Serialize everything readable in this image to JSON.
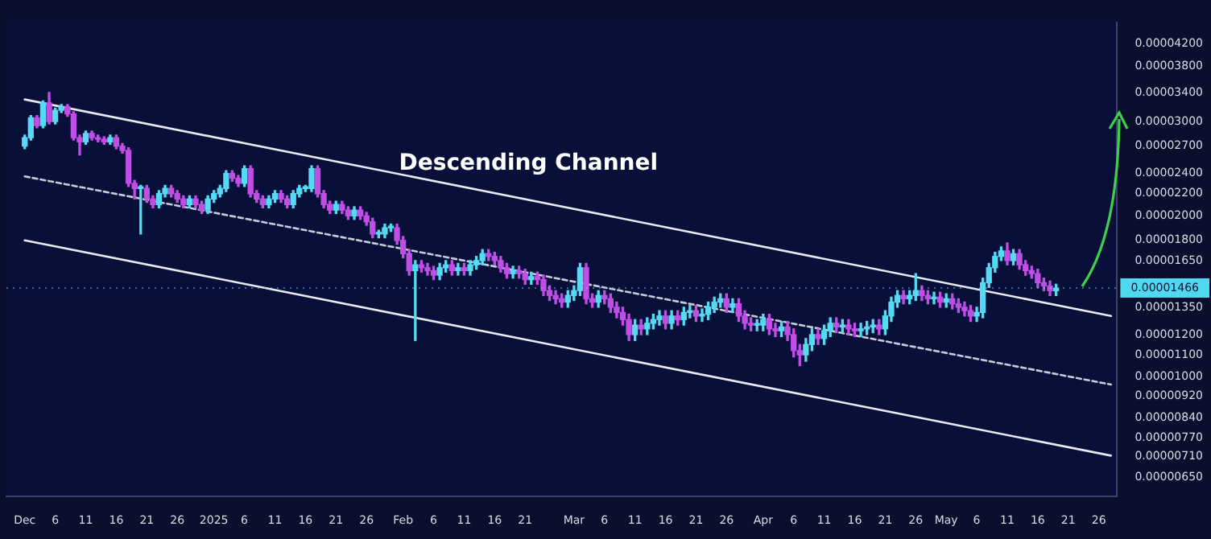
{
  "chart_data": {
    "type": "candlestick",
    "log": true,
    "annotations": [
      "Descending Channel"
    ],
    "x": [
      "2024-12-01",
      "2024-12-02",
      "2024-12-03",
      "2024-12-04",
      "2024-12-05",
      "2024-12-06",
      "2024-12-07",
      "2024-12-08",
      "2024-12-09",
      "2024-12-10",
      "2024-12-11",
      "2024-12-12",
      "2024-12-13",
      "2024-12-14",
      "2024-12-15",
      "2024-12-16",
      "2024-12-17",
      "2024-12-18",
      "2024-12-19",
      "2024-12-20",
      "2024-12-21",
      "2024-12-22",
      "2024-12-23",
      "2024-12-24",
      "2024-12-25",
      "2024-12-26",
      "2024-12-27",
      "2024-12-28",
      "2024-12-29",
      "2024-12-30",
      "2024-12-31",
      "2025-01-01",
      "2025-01-02",
      "2025-01-03",
      "2025-01-04",
      "2025-01-05",
      "2025-01-06",
      "2025-01-07",
      "2025-01-08",
      "2025-01-09",
      "2025-01-10",
      "2025-01-11",
      "2025-01-12",
      "2025-01-13",
      "2025-01-14",
      "2025-01-15",
      "2025-01-16",
      "2025-01-17",
      "2025-01-18",
      "2025-01-19",
      "2025-01-20",
      "2025-01-21",
      "2025-01-22",
      "2025-01-23",
      "2025-01-24",
      "2025-01-25",
      "2025-01-26",
      "2025-01-27",
      "2025-01-28",
      "2025-01-29",
      "2025-01-30",
      "2025-01-31",
      "2025-02-01",
      "2025-02-02",
      "2025-02-03",
      "2025-02-04",
      "2025-02-05",
      "2025-02-06",
      "2025-02-07",
      "2025-02-08",
      "2025-02-09",
      "2025-02-10",
      "2025-02-11",
      "2025-02-12",
      "2025-02-13",
      "2025-02-14",
      "2025-02-15",
      "2025-02-16",
      "2025-02-17",
      "2025-02-18",
      "2025-02-19",
      "2025-02-20",
      "2025-02-21",
      "2025-02-22",
      "2025-02-23",
      "2025-02-24",
      "2025-02-25",
      "2025-02-26",
      "2025-02-27",
      "2025-02-28",
      "2025-03-01",
      "2025-03-02",
      "2025-03-03",
      "2025-03-04",
      "2025-03-05",
      "2025-03-06",
      "2025-03-07",
      "2025-03-08",
      "2025-03-09",
      "2025-03-10",
      "2025-03-11",
      "2025-03-12",
      "2025-03-13",
      "2025-03-14",
      "2025-03-15",
      "2025-03-16",
      "2025-03-17",
      "2025-03-18",
      "2025-03-19",
      "2025-03-20",
      "2025-03-21",
      "2025-03-22",
      "2025-03-23",
      "2025-03-24",
      "2025-03-25",
      "2025-03-26",
      "2025-03-27",
      "2025-03-28",
      "2025-03-29",
      "2025-03-30",
      "2025-03-31",
      "2025-04-01",
      "2025-04-02",
      "2025-04-03",
      "2025-04-04",
      "2025-04-05",
      "2025-04-06",
      "2025-04-07",
      "2025-04-08",
      "2025-04-09",
      "2025-04-10",
      "2025-04-11",
      "2025-04-12",
      "2025-04-13",
      "2025-04-14",
      "2025-04-15",
      "2025-04-16",
      "2025-04-17",
      "2025-04-18",
      "2025-04-19",
      "2025-04-20",
      "2025-04-21",
      "2025-04-22",
      "2025-04-23",
      "2025-04-24",
      "2025-04-25",
      "2025-04-26",
      "2025-04-27",
      "2025-04-28",
      "2025-04-29",
      "2025-04-30",
      "2025-05-01",
      "2025-05-02",
      "2025-05-03",
      "2025-05-04",
      "2025-05-05",
      "2025-05-06",
      "2025-05-07",
      "2025-05-08",
      "2025-05-09",
      "2025-05-10",
      "2025-05-11",
      "2025-05-12",
      "2025-05-13",
      "2025-05-14",
      "2025-05-15",
      "2025-05-16",
      "2025-05-17",
      "2025-05-18",
      "2025-05-19"
    ],
    "ohlc": [
      [
        2.7e-05,
        2.83e-05,
        2.67e-05,
        2.8e-05
      ],
      [
        2.8e-05,
        3.08e-05,
        2.77e-05,
        3.05e-05
      ],
      [
        3.05e-05,
        3.08e-05,
        2.92e-05,
        2.95e-05
      ],
      [
        2.95e-05,
        3.28e-05,
        2.92e-05,
        3.25e-05
      ],
      [
        3.25e-05,
        3.4e-05,
        2.97e-05,
        3e-05
      ],
      [
        3e-05,
        3.18e-05,
        2.97e-05,
        3.15e-05
      ],
      [
        3.15e-05,
        3.23e-05,
        3.12e-05,
        3.2e-05
      ],
      [
        3.2e-05,
        3.23e-05,
        3.07e-05,
        3.1e-05
      ],
      [
        3.1e-05,
        3.13e-05,
        2.77e-05,
        2.8e-05
      ],
      [
        2.8e-05,
        2.83e-05,
        2.6e-05,
        2.75e-05
      ],
      [
        2.75e-05,
        2.88e-05,
        2.72e-05,
        2.85e-05
      ],
      [
        2.85e-05,
        2.88e-05,
        2.77e-05,
        2.8e-05
      ],
      [
        2.8e-05,
        2.83e-05,
        2.75e-05,
        2.78e-05
      ],
      [
        2.78e-05,
        2.81e-05,
        2.72e-05,
        2.75e-05
      ],
      [
        2.75e-05,
        2.83e-05,
        2.72e-05,
        2.8e-05
      ],
      [
        2.8e-05,
        2.83e-05,
        2.67e-05,
        2.7e-05
      ],
      [
        2.7e-05,
        2.73e-05,
        2.62e-05,
        2.65e-05
      ],
      [
        2.65e-05,
        2.68e-05,
        2.27e-05,
        2.3e-05
      ],
      [
        2.3e-05,
        2.33e-05,
        2.15e-05,
        2.25e-05
      ],
      [
        2.25e-05,
        2.28e-05,
        1.85e-05,
        2.25e-05
      ],
      [
        2.25e-05,
        2.28e-05,
        2.12e-05,
        2.15e-05
      ],
      [
        2.15e-05,
        2.18e-05,
        2.07e-05,
        2.1e-05
      ],
      [
        2.1e-05,
        2.23e-05,
        2.07e-05,
        2.2e-05
      ],
      [
        2.2e-05,
        2.28e-05,
        2.17e-05,
        2.25e-05
      ],
      [
        2.25e-05,
        2.28e-05,
        2.17e-05,
        2.2e-05
      ],
      [
        2.2e-05,
        2.23e-05,
        2.12e-05,
        2.15e-05
      ],
      [
        2.15e-05,
        2.18e-05,
        2.07e-05,
        2.1e-05
      ],
      [
        2.1e-05,
        2.18e-05,
        2.07e-05,
        2.15e-05
      ],
      [
        2.15e-05,
        2.18e-05,
        2.07e-05,
        2.1e-05
      ],
      [
        2.1e-05,
        2.13e-05,
        2.02e-05,
        2.05e-05
      ],
      [
        2.05e-05,
        2.18e-05,
        2.02e-05,
        2.15e-05
      ],
      [
        2.15e-05,
        2.23e-05,
        2.12e-05,
        2.2e-05
      ],
      [
        2.2e-05,
        2.28e-05,
        2.17e-05,
        2.25e-05
      ],
      [
        2.25e-05,
        2.43e-05,
        2.22e-05,
        2.4e-05
      ],
      [
        2.4e-05,
        2.43e-05,
        2.32e-05,
        2.35e-05
      ],
      [
        2.35e-05,
        2.38e-05,
        2.27e-05,
        2.3e-05
      ],
      [
        2.3e-05,
        2.48e-05,
        2.27e-05,
        2.45e-05
      ],
      [
        2.45e-05,
        2.48e-05,
        2.17e-05,
        2.2e-05
      ],
      [
        2.2e-05,
        2.23e-05,
        2.12e-05,
        2.15e-05
      ],
      [
        2.15e-05,
        2.18e-05,
        2.07e-05,
        2.1e-05
      ],
      [
        2.1e-05,
        2.18e-05,
        2.07e-05,
        2.15e-05
      ],
      [
        2.15e-05,
        2.23e-05,
        2.12e-05,
        2.2e-05
      ],
      [
        2.2e-05,
        2.23e-05,
        2.12e-05,
        2.15e-05
      ],
      [
        2.15e-05,
        2.18e-05,
        2.07e-05,
        2.1e-05
      ],
      [
        2.1e-05,
        2.23e-05,
        2.07e-05,
        2.2e-05
      ],
      [
        2.2e-05,
        2.28e-05,
        2.17e-05,
        2.25e-05
      ],
      [
        2.25e-05,
        2.28e-05,
        2.22e-05,
        2.25e-05
      ],
      [
        2.25e-05,
        2.48e-05,
        2.22e-05,
        2.45e-05
      ],
      [
        2.45e-05,
        2.48e-05,
        2.17e-05,
        2.2e-05
      ],
      [
        2.2e-05,
        2.23e-05,
        2.07e-05,
        2.1e-05
      ],
      [
        2.1e-05,
        2.13e-05,
        2.02e-05,
        2.05e-05
      ],
      [
        2.05e-05,
        2.13e-05,
        2.02e-05,
        2.1e-05
      ],
      [
        2.1e-05,
        2.13e-05,
        2.02e-05,
        2.05e-05
      ],
      [
        2.05e-05,
        2.08e-05,
        1.97e-05,
        2e-05
      ],
      [
        2e-05,
        2.08e-05,
        1.97e-05,
        2.05e-05
      ],
      [
        2.05e-05,
        2.08e-05,
        1.97e-05,
        2e-05
      ],
      [
        2e-05,
        2.03e-05,
        1.92e-05,
        1.95e-05
      ],
      [
        1.95e-05,
        1.98e-05,
        1.82e-05,
        1.85e-05
      ],
      [
        1.85e-05,
        1.88e-05,
        1.82e-05,
        1.85e-05
      ],
      [
        1.85e-05,
        1.93e-05,
        1.82e-05,
        1.9e-05
      ],
      [
        1.9e-05,
        1.93e-05,
        1.87e-05,
        1.9e-05
      ],
      [
        1.9e-05,
        1.93e-05,
        1.77e-05,
        1.8e-05
      ],
      [
        1.8e-05,
        1.83e-05,
        1.67e-05,
        1.7e-05
      ],
      [
        1.7e-05,
        1.73e-05,
        1.55e-05,
        1.58e-05
      ],
      [
        1.58e-05,
        1.65e-05,
        1.17e-05,
        1.62e-05
      ],
      [
        1.62e-05,
        1.65e-05,
        1.57e-05,
        1.6e-05
      ],
      [
        1.6e-05,
        1.63e-05,
        1.55e-05,
        1.58e-05
      ],
      [
        1.58e-05,
        1.61e-05,
        1.52e-05,
        1.55e-05
      ],
      [
        1.55e-05,
        1.63e-05,
        1.52e-05,
        1.6e-05
      ],
      [
        1.6e-05,
        1.65e-05,
        1.57e-05,
        1.62e-05
      ],
      [
        1.62e-05,
        1.65e-05,
        1.55e-05,
        1.58e-05
      ],
      [
        1.58e-05,
        1.63e-05,
        1.55e-05,
        1.6e-05
      ],
      [
        1.6e-05,
        1.63e-05,
        1.55e-05,
        1.58e-05
      ],
      [
        1.58e-05,
        1.65e-05,
        1.55e-05,
        1.62e-05
      ],
      [
        1.62e-05,
        1.68e-05,
        1.59e-05,
        1.65e-05
      ],
      [
        1.65e-05,
        1.73e-05,
        1.62e-05,
        1.7e-05
      ],
      [
        1.7e-05,
        1.73e-05,
        1.65e-05,
        1.68e-05
      ],
      [
        1.68e-05,
        1.71e-05,
        1.62e-05,
        1.65e-05
      ],
      [
        1.65e-05,
        1.68e-05,
        1.57e-05,
        1.6e-05
      ],
      [
        1.6e-05,
        1.63e-05,
        1.53e-05,
        1.56e-05
      ],
      [
        1.56e-05,
        1.61e-05,
        1.53e-05,
        1.58e-05
      ],
      [
        1.58e-05,
        1.61e-05,
        1.53e-05,
        1.56e-05
      ],
      [
        1.56e-05,
        1.59e-05,
        1.49e-05,
        1.52e-05
      ],
      [
        1.52e-05,
        1.57e-05,
        1.49e-05,
        1.54e-05
      ],
      [
        1.54e-05,
        1.57e-05,
        1.49e-05,
        1.52e-05
      ],
      [
        1.52e-05,
        1.55e-05,
        1.42e-05,
        1.45e-05
      ],
      [
        1.45e-05,
        1.48e-05,
        1.39e-05,
        1.42e-05
      ],
      [
        1.42e-05,
        1.45e-05,
        1.37e-05,
        1.4e-05
      ],
      [
        1.4e-05,
        1.43e-05,
        1.35e-05,
        1.38e-05
      ],
      [
        1.38e-05,
        1.45e-05,
        1.35e-05,
        1.42e-05
      ],
      [
        1.42e-05,
        1.48e-05,
        1.39e-05,
        1.45e-05
      ],
      [
        1.45e-05,
        1.63e-05,
        1.42e-05,
        1.6e-05
      ],
      [
        1.6e-05,
        1.63e-05,
        1.37e-05,
        1.4e-05
      ],
      [
        1.4e-05,
        1.43e-05,
        1.35e-05,
        1.38e-05
      ],
      [
        1.38e-05,
        1.45e-05,
        1.35e-05,
        1.42e-05
      ],
      [
        1.42e-05,
        1.45e-05,
        1.37e-05,
        1.4e-05
      ],
      [
        1.4e-05,
        1.43e-05,
        1.32e-05,
        1.35e-05
      ],
      [
        1.35e-05,
        1.38e-05,
        1.29e-05,
        1.32e-05
      ],
      [
        1.32e-05,
        1.35e-05,
        1.25e-05,
        1.28e-05
      ],
      [
        1.28e-05,
        1.31e-05,
        1.17e-05,
        1.2e-05
      ],
      [
        1.2e-05,
        1.28e-05,
        1.17e-05,
        1.25e-05
      ],
      [
        1.25e-05,
        1.28e-05,
        1.2e-05,
        1.23e-05
      ],
      [
        1.23e-05,
        1.29e-05,
        1.2e-05,
        1.26e-05
      ],
      [
        1.26e-05,
        1.31e-05,
        1.23e-05,
        1.28e-05
      ],
      [
        1.28e-05,
        1.33e-05,
        1.25e-05,
        1.3e-05
      ],
      [
        1.3e-05,
        1.33e-05,
        1.23e-05,
        1.26e-05
      ],
      [
        1.26e-05,
        1.33e-05,
        1.23e-05,
        1.3e-05
      ],
      [
        1.3e-05,
        1.33e-05,
        1.25e-05,
        1.28e-05
      ],
      [
        1.28e-05,
        1.35e-05,
        1.25e-05,
        1.32e-05
      ],
      [
        1.32e-05,
        1.36e-05,
        1.29e-05,
        1.33e-05
      ],
      [
        1.33e-05,
        1.36e-05,
        1.27e-05,
        1.3e-05
      ],
      [
        1.3e-05,
        1.34e-05,
        1.27e-05,
        1.31e-05
      ],
      [
        1.31e-05,
        1.38e-05,
        1.28e-05,
        1.35e-05
      ],
      [
        1.35e-05,
        1.41e-05,
        1.32e-05,
        1.38e-05
      ],
      [
        1.38e-05,
        1.43e-05,
        1.35e-05,
        1.4e-05
      ],
      [
        1.4e-05,
        1.43e-05,
        1.32e-05,
        1.35e-05
      ],
      [
        1.35e-05,
        1.4e-05,
        1.32e-05,
        1.37e-05
      ],
      [
        1.37e-05,
        1.4e-05,
        1.27e-05,
        1.3e-05
      ],
      [
        1.3e-05,
        1.33e-05,
        1.23e-05,
        1.26e-05
      ],
      [
        1.26e-05,
        1.29e-05,
        1.22e-05,
        1.25e-05
      ],
      [
        1.25e-05,
        1.28e-05,
        1.22e-05,
        1.25e-05
      ],
      [
        1.25e-05,
        1.31e-05,
        1.22e-05,
        1.28e-05
      ],
      [
        1.28e-05,
        1.31e-05,
        1.2e-05,
        1.23e-05
      ],
      [
        1.23e-05,
        1.26e-05,
        1.19e-05,
        1.22e-05
      ],
      [
        1.22e-05,
        1.27e-05,
        1.19e-05,
        1.24e-05
      ],
      [
        1.24e-05,
        1.27e-05,
        1.17e-05,
        1.2e-05
      ],
      [
        1.2e-05,
        1.23e-05,
        1.09e-05,
        1.12e-05
      ],
      [
        1.12e-05,
        1.15e-05,
        1.05e-05,
        1.1e-05
      ],
      [
        1.1e-05,
        1.18e-05,
        1.07e-05,
        1.15e-05
      ],
      [
        1.15e-05,
        1.23e-05,
        1.12e-05,
        1.2e-05
      ],
      [
        1.2e-05,
        1.23e-05,
        1.15e-05,
        1.18e-05
      ],
      [
        1.18e-05,
        1.25e-05,
        1.15e-05,
        1.22e-05
      ],
      [
        1.22e-05,
        1.29e-05,
        1.19e-05,
        1.26e-05
      ],
      [
        1.26e-05,
        1.29e-05,
        1.21e-05,
        1.24e-05
      ],
      [
        1.24e-05,
        1.28e-05,
        1.21e-05,
        1.25e-05
      ],
      [
        1.25e-05,
        1.28e-05,
        1.2e-05,
        1.23e-05
      ],
      [
        1.23e-05,
        1.26e-05,
        1.19e-05,
        1.22e-05
      ],
      [
        1.22e-05,
        1.26e-05,
        1.19e-05,
        1.23e-05
      ],
      [
        1.23e-05,
        1.27e-05,
        1.2e-05,
        1.24e-05
      ],
      [
        1.24e-05,
        1.28e-05,
        1.21e-05,
        1.25e-05
      ],
      [
        1.25e-05,
        1.28e-05,
        1.2e-05,
        1.23e-05
      ],
      [
        1.23e-05,
        1.33e-05,
        1.2e-05,
        1.3e-05
      ],
      [
        1.3e-05,
        1.41e-05,
        1.27e-05,
        1.38e-05
      ],
      [
        1.38e-05,
        1.45e-05,
        1.35e-05,
        1.42e-05
      ],
      [
        1.42e-05,
        1.45e-05,
        1.37e-05,
        1.4e-05
      ],
      [
        1.4e-05,
        1.45e-05,
        1.37e-05,
        1.42e-05
      ],
      [
        1.42e-05,
        1.56e-05,
        1.39e-05,
        1.45e-05
      ],
      [
        1.45e-05,
        1.48e-05,
        1.39e-05,
        1.42e-05
      ],
      [
        1.42e-05,
        1.45e-05,
        1.37e-05,
        1.4e-05
      ],
      [
        1.4e-05,
        1.44e-05,
        1.37e-05,
        1.41e-05
      ],
      [
        1.41e-05,
        1.44e-05,
        1.35e-05,
        1.38e-05
      ],
      [
        1.38e-05,
        1.43e-05,
        1.35e-05,
        1.4e-05
      ],
      [
        1.4e-05,
        1.43e-05,
        1.34e-05,
        1.37e-05
      ],
      [
        1.37e-05,
        1.4e-05,
        1.32e-05,
        1.35e-05
      ],
      [
        1.35e-05,
        1.38e-05,
        1.3e-05,
        1.33e-05
      ],
      [
        1.33e-05,
        1.36e-05,
        1.27e-05,
        1.3e-05
      ],
      [
        1.3e-05,
        1.35e-05,
        1.27e-05,
        1.32e-05
      ],
      [
        1.32e-05,
        1.53e-05,
        1.29e-05,
        1.5e-05
      ],
      [
        1.5e-05,
        1.63e-05,
        1.47e-05,
        1.6e-05
      ],
      [
        1.6e-05,
        1.71e-05,
        1.57e-05,
        1.68e-05
      ],
      [
        1.68e-05,
        1.75e-05,
        1.65e-05,
        1.72e-05
      ],
      [
        1.72e-05,
        1.78e-05,
        1.62e-05,
        1.65e-05
      ],
      [
        1.65e-05,
        1.73e-05,
        1.62e-05,
        1.7e-05
      ],
      [
        1.7e-05,
        1.73e-05,
        1.59e-05,
        1.62e-05
      ],
      [
        1.62e-05,
        1.65e-05,
        1.55e-05,
        1.58e-05
      ],
      [
        1.58e-05,
        1.61e-05,
        1.53e-05,
        1.56e-05
      ],
      [
        1.56e-05,
        1.59e-05,
        1.47e-05,
        1.5e-05
      ],
      [
        1.5e-05,
        1.53e-05,
        1.45e-05,
        1.48e-05
      ],
      [
        1.48e-05,
        1.51e-05,
        1.42e-05,
        1.45e-05
      ],
      [
        1.45e-05,
        1.49e-05,
        1.42e-05,
        1.466e-05
      ]
    ],
    "series": [
      {
        "type": "line",
        "x": [
          "2024-12-01",
          "2025-05-28"
        ],
        "values": [
          3.3e-05,
          1.3e-05
        ],
        "color": "#e8eaf0"
      },
      {
        "type": "line",
        "x": [
          "2024-12-01",
          "2025-05-28"
        ],
        "values": [
          2.37e-05,
          9.68e-06
        ],
        "color": "#c8ccd8",
        "line_style": "dashed"
      },
      {
        "type": "line",
        "x": [
          "2024-12-01",
          "2025-05-28"
        ],
        "values": [
          1.8e-05,
          7.13e-06
        ],
        "color": "#e8eaf0"
      }
    ],
    "ref_lines": [
      {
        "axis": "y",
        "value": 1.466e-05,
        "label": "0.00001466",
        "color": "#4fd8f0"
      }
    ],
    "xlim": [
      "2024-11-28",
      "2025-05-29"
    ],
    "xticks": [
      {
        "value": "2024-12-01",
        "label": "Dec"
      },
      {
        "value": "2024-12-06",
        "label": "6"
      },
      {
        "value": "2024-12-11",
        "label": "11"
      },
      {
        "value": "2024-12-16",
        "label": "16"
      },
      {
        "value": "2024-12-21",
        "label": "21"
      },
      {
        "value": "2024-12-26",
        "label": "26"
      },
      {
        "value": "2025-01-01",
        "label": "2025"
      },
      {
        "value": "2025-01-06",
        "label": "6"
      },
      {
        "value": "2025-01-11",
        "label": "11"
      },
      {
        "value": "2025-01-16",
        "label": "16"
      },
      {
        "value": "2025-01-21",
        "label": "21"
      },
      {
        "value": "2025-01-26",
        "label": "26"
      },
      {
        "value": "2025-02-01",
        "label": "Feb"
      },
      {
        "value": "2025-02-06",
        "label": "6"
      },
      {
        "value": "2025-02-11",
        "label": "11"
      },
      {
        "value": "2025-02-16",
        "label": "16"
      },
      {
        "value": "2025-02-21",
        "label": "21"
      },
      {
        "value": "2025-03-01",
        "label": "Mar"
      },
      {
        "value": "2025-03-06",
        "label": "6"
      },
      {
        "value": "2025-03-11",
        "label": "11"
      },
      {
        "value": "2025-03-16",
        "label": "16"
      },
      {
        "value": "2025-03-21",
        "label": "21"
      },
      {
        "value": "2025-03-26",
        "label": "26"
      },
      {
        "value": "2025-04-01",
        "label": "Apr"
      },
      {
        "value": "2025-04-06",
        "label": "6"
      },
      {
        "value": "2025-04-11",
        "label": "11"
      },
      {
        "value": "2025-04-16",
        "label": "16"
      },
      {
        "value": "2025-04-21",
        "label": "21"
      },
      {
        "value": "2025-04-26",
        "label": "26"
      },
      {
        "value": "2025-05-01",
        "label": "May"
      },
      {
        "value": "2025-05-06",
        "label": "6"
      },
      {
        "value": "2025-05-11",
        "label": "11"
      },
      {
        "value": "2025-05-16",
        "label": "16"
      },
      {
        "value": "2025-05-21",
        "label": "21"
      },
      {
        "value": "2025-05-26",
        "label": "26"
      }
    ],
    "ylim": [
      5.98e-06,
      4.594e-05
    ],
    "yticks": [
      {
        "value": 6.5e-06,
        "label": "0.00000650"
      },
      {
        "value": 7.1e-06,
        "label": "0.00000710"
      },
      {
        "value": 7.7e-06,
        "label": "0.00000770"
      },
      {
        "value": 8.4e-06,
        "label": "0.00000840"
      },
      {
        "value": 9.2e-06,
        "label": "0.00000920"
      },
      {
        "value": 1e-05,
        "label": "0.00001000"
      },
      {
        "value": 1.1e-05,
        "label": "0.00001100"
      },
      {
        "value": 1.2e-05,
        "label": "0.00001200"
      },
      {
        "value": 1.35e-05,
        "label": "0.00001350"
      },
      {
        "value": 1.65e-05,
        "label": "0.00001650"
      },
      {
        "value": 1.8e-05,
        "label": "0.00001800"
      },
      {
        "value": 2e-05,
        "label": "0.00002000"
      },
      {
        "value": 2.2e-05,
        "label": "0.00002200"
      },
      {
        "value": 2.4e-05,
        "label": "0.00002400"
      },
      {
        "value": 2.7e-05,
        "label": "0.00002700"
      },
      {
        "value": 3e-05,
        "label": "0.00003000"
      },
      {
        "value": 3.4e-05,
        "label": "0.00003400"
      },
      {
        "value": 3.8e-05,
        "label": "0.00003800"
      },
      {
        "value": 4.2e-05,
        "label": "0.00004200"
      }
    ]
  }
}
